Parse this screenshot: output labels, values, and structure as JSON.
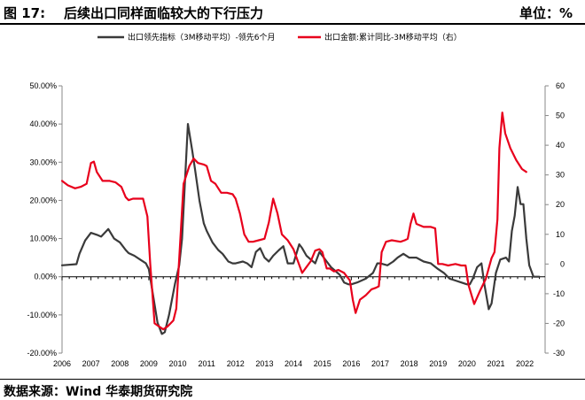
{
  "header": {
    "title": "图 17:    后续出口同样面临较大的下行压力",
    "unit": "单位：%"
  },
  "footer": {
    "source": "数据来源：Wind 华泰期货研究院"
  },
  "colors": {
    "series_leading": "#3a3a3a",
    "series_export": "#e8001c",
    "axis": "#888888",
    "text": "#000000"
  },
  "chart_data": {
    "type": "line",
    "legend_position": "top",
    "grid": false,
    "x_range": [
      2006.0,
      2022.7
    ],
    "x_ticks": [
      "2006",
      "2007",
      "2008",
      "2009",
      "2010",
      "2011",
      "2012",
      "2013",
      "2014",
      "2015",
      "2016",
      "2017",
      "2018",
      "2019",
      "2020",
      "2021",
      "2022"
    ],
    "y_left": {
      "range": [
        -20,
        50
      ],
      "tick_labels": [
        "-20.00%",
        "-10.00%",
        "0.00%",
        "10.00%",
        "20.00%",
        "30.00%",
        "40.00%",
        "50.00%"
      ]
    },
    "y_right": {
      "range": [
        -30,
        60
      ],
      "tick_labels": [
        "-30",
        "-20",
        "-10",
        "0",
        "10",
        "20",
        "30",
        "40",
        "50",
        "60"
      ]
    },
    "series": [
      {
        "name": "出口领先指标（3M移动平均）-领先6个月",
        "axis": "left",
        "points": [
          [
            2006.0,
            3.0
          ],
          [
            2006.5,
            3.3
          ],
          [
            2006.6,
            6.0
          ],
          [
            2006.8,
            9.5
          ],
          [
            2007.0,
            11.5
          ],
          [
            2007.2,
            11.0
          ],
          [
            2007.35,
            10.5
          ],
          [
            2007.6,
            12.5
          ],
          [
            2007.8,
            10.0
          ],
          [
            2008.0,
            9.0
          ],
          [
            2008.2,
            7.0
          ],
          [
            2008.3,
            6.2
          ],
          [
            2008.5,
            5.5
          ],
          [
            2008.7,
            4.5
          ],
          [
            2008.9,
            3.5
          ],
          [
            2009.0,
            2.0
          ],
          [
            2009.15,
            -5.0
          ],
          [
            2009.3,
            -12.0
          ],
          [
            2009.45,
            -15.0
          ],
          [
            2009.55,
            -14.5
          ],
          [
            2009.7,
            -10.0
          ],
          [
            2009.9,
            -2.0
          ],
          [
            2010.05,
            3.0
          ],
          [
            2010.15,
            10.0
          ],
          [
            2010.25,
            25.0
          ],
          [
            2010.35,
            40.0
          ],
          [
            2010.5,
            33.0
          ],
          [
            2010.6,
            28.0
          ],
          [
            2010.75,
            20.0
          ],
          [
            2010.9,
            14.0
          ],
          [
            2011.0,
            12.0
          ],
          [
            2011.2,
            9.0
          ],
          [
            2011.4,
            7.0
          ],
          [
            2011.55,
            6.0
          ],
          [
            2011.75,
            4.0
          ],
          [
            2011.9,
            3.5
          ],
          [
            2012.0,
            3.5
          ],
          [
            2012.25,
            4.0
          ],
          [
            2012.4,
            3.5
          ],
          [
            2012.55,
            2.5
          ],
          [
            2012.7,
            6.5
          ],
          [
            2012.85,
            7.5
          ],
          [
            2013.0,
            5.0
          ],
          [
            2013.15,
            4.0
          ],
          [
            2013.3,
            5.5
          ],
          [
            2013.5,
            7.0
          ],
          [
            2013.65,
            8.0
          ],
          [
            2013.8,
            3.5
          ],
          [
            2014.0,
            3.5
          ],
          [
            2014.2,
            8.5
          ],
          [
            2014.3,
            7.5
          ],
          [
            2014.45,
            5.5
          ],
          [
            2014.6,
            4.5
          ],
          [
            2014.75,
            3.5
          ],
          [
            2014.9,
            6.5
          ],
          [
            2015.0,
            5.5
          ],
          [
            2015.15,
            4.0
          ],
          [
            2015.3,
            2.5
          ],
          [
            2015.45,
            1.5
          ],
          [
            2015.6,
            0.5
          ],
          [
            2015.75,
            -1.5
          ],
          [
            2015.9,
            -2.0
          ],
          [
            2016.0,
            -2.0
          ],
          [
            2016.2,
            -1.5
          ],
          [
            2016.5,
            -0.5
          ],
          [
            2016.75,
            1.0
          ],
          [
            2016.9,
            3.5
          ],
          [
            2017.0,
            3.5
          ],
          [
            2017.25,
            3.0
          ],
          [
            2017.45,
            4.0
          ],
          [
            2017.6,
            5.0
          ],
          [
            2017.8,
            6.0
          ],
          [
            2018.0,
            5.0
          ],
          [
            2018.25,
            5.0
          ],
          [
            2018.5,
            4.0
          ],
          [
            2018.75,
            3.5
          ],
          [
            2019.0,
            2.0
          ],
          [
            2019.2,
            1.0
          ],
          [
            2019.4,
            -0.5
          ],
          [
            2019.6,
            -1.0
          ],
          [
            2019.8,
            -1.5
          ],
          [
            2020.0,
            -2.0
          ],
          [
            2020.1,
            -2.0
          ],
          [
            2020.2,
            -0.5
          ],
          [
            2020.35,
            2.5
          ],
          [
            2020.5,
            3.5
          ],
          [
            2020.6,
            -2.0
          ],
          [
            2020.75,
            -8.5
          ],
          [
            2020.85,
            -7.0
          ],
          [
            2021.0,
            1.0
          ],
          [
            2021.15,
            4.5
          ],
          [
            2021.35,
            5.0
          ],
          [
            2021.45,
            4.0
          ],
          [
            2021.55,
            12.0
          ],
          [
            2021.65,
            16.0
          ],
          [
            2021.75,
            23.5
          ],
          [
            2021.85,
            19.0
          ],
          [
            2021.95,
            19.0
          ],
          [
            2022.05,
            10.0
          ],
          [
            2022.15,
            3.0
          ],
          [
            2022.3,
            0.0
          ],
          [
            2022.5,
            0.0
          ]
        ]
      },
      {
        "name": "出口金额:累计同比-3M移动平均（右）",
        "axis": "right",
        "points": [
          [
            2006.0,
            28.0
          ],
          [
            2006.2,
            26.5
          ],
          [
            2006.45,
            25.5
          ],
          [
            2006.65,
            26.0
          ],
          [
            2006.85,
            27.0
          ],
          [
            2007.0,
            34.0
          ],
          [
            2007.1,
            34.5
          ],
          [
            2007.2,
            31.0
          ],
          [
            2007.4,
            28.0
          ],
          [
            2007.65,
            28.0
          ],
          [
            2007.85,
            27.5
          ],
          [
            2008.05,
            26.0
          ],
          [
            2008.2,
            22.5
          ],
          [
            2008.3,
            21.5
          ],
          [
            2008.45,
            22.0
          ],
          [
            2008.6,
            22.0
          ],
          [
            2008.8,
            22.0
          ],
          [
            2008.95,
            16.0
          ],
          [
            2009.05,
            0.0
          ],
          [
            2009.2,
            -20.0
          ],
          [
            2009.35,
            -21.0
          ],
          [
            2009.5,
            -22.0
          ],
          [
            2009.65,
            -21.0
          ],
          [
            2009.85,
            -19.0
          ],
          [
            2009.95,
            -15.0
          ],
          [
            2010.1,
            10.0
          ],
          [
            2010.2,
            27.0
          ],
          [
            2010.4,
            33.0
          ],
          [
            2010.55,
            35.5
          ],
          [
            2010.7,
            34.0
          ],
          [
            2010.9,
            33.5
          ],
          [
            2011.0,
            33.0
          ],
          [
            2011.15,
            28.0
          ],
          [
            2011.3,
            27.0
          ],
          [
            2011.5,
            24.0
          ],
          [
            2011.7,
            24.0
          ],
          [
            2011.9,
            23.5
          ],
          [
            2012.0,
            22.0
          ],
          [
            2012.15,
            17.0
          ],
          [
            2012.3,
            10.0
          ],
          [
            2012.45,
            7.5
          ],
          [
            2012.6,
            7.5
          ],
          [
            2012.8,
            8.0
          ],
          [
            2013.0,
            8.5
          ],
          [
            2013.15,
            14.0
          ],
          [
            2013.3,
            22.0
          ],
          [
            2013.45,
            17.0
          ],
          [
            2013.6,
            10.0
          ],
          [
            2013.8,
            8.0
          ],
          [
            2014.0,
            5.0
          ],
          [
            2014.15,
            1.0
          ],
          [
            2014.3,
            -3.0
          ],
          [
            2014.45,
            -1.0
          ],
          [
            2014.6,
            1.0
          ],
          [
            2014.75,
            4.5
          ],
          [
            2014.9,
            5.0
          ],
          [
            2015.0,
            4.0
          ],
          [
            2015.15,
            -1.5
          ],
          [
            2015.25,
            -1.5
          ],
          [
            2015.4,
            -2.5
          ],
          [
            2015.55,
            -2.0
          ],
          [
            2015.75,
            -3.0
          ],
          [
            2015.95,
            -5.5
          ],
          [
            2016.05,
            -12.0
          ],
          [
            2016.15,
            -16.5
          ],
          [
            2016.3,
            -12.0
          ],
          [
            2016.5,
            -10.5
          ],
          [
            2016.7,
            -8.5
          ],
          [
            2016.85,
            -8.0
          ],
          [
            2016.95,
            -7.5
          ],
          [
            2017.05,
            4.0
          ],
          [
            2017.2,
            7.5
          ],
          [
            2017.4,
            8.0
          ],
          [
            2017.7,
            7.5
          ],
          [
            2017.85,
            8.0
          ],
          [
            2017.95,
            8.5
          ],
          [
            2018.05,
            13.5
          ],
          [
            2018.15,
            17.0
          ],
          [
            2018.25,
            13.5
          ],
          [
            2018.5,
            12.5
          ],
          [
            2018.75,
            12.5
          ],
          [
            2018.9,
            12.0
          ],
          [
            2019.0,
            0.0
          ],
          [
            2019.15,
            0.0
          ],
          [
            2019.35,
            -0.5
          ],
          [
            2019.6,
            0.0
          ],
          [
            2019.8,
            -0.5
          ],
          [
            2019.95,
            -0.5
          ],
          [
            2020.05,
            -7.0
          ],
          [
            2020.25,
            -13.5
          ],
          [
            2020.45,
            -9.0
          ],
          [
            2020.65,
            -5.0
          ],
          [
            2020.85,
            2.0
          ],
          [
            2020.95,
            4.0
          ],
          [
            2021.05,
            15.0
          ],
          [
            2021.12,
            39.0
          ],
          [
            2021.22,
            51.0
          ],
          [
            2021.32,
            44.0
          ],
          [
            2021.5,
            39.0
          ],
          [
            2021.7,
            35.0
          ],
          [
            2021.9,
            32.0
          ],
          [
            2022.05,
            31.0
          ]
        ]
      }
    ]
  }
}
